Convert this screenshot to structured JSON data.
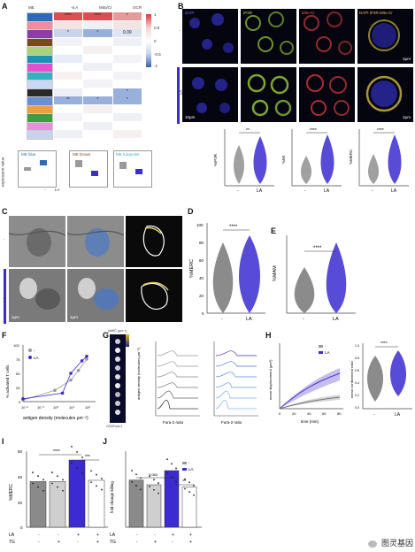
{
  "panelA": {
    "label": "A",
    "col_headers": [
      "ME",
      "-II.A",
      "Mito/Cr",
      "OCR"
    ],
    "row_colors": [
      "#2f6ab8",
      "#f08ca0",
      "#8a3fa6",
      "#7a4a1e",
      "#a9d27a",
      "#1e90b5",
      "#e44fcf",
      "#35b0c0",
      "#c9d9f5",
      "#2a2a2a",
      "#6a8fd0",
      "#f39c3e",
      "#3e9e3e",
      "#e98fd7",
      "#c7d3ea"
    ],
    "stars": [
      [
        "****",
        "****",
        "*"
      ],
      [
        "",
        "",
        ""
      ],
      [
        "*",
        "*",
        "0.09"
      ],
      [
        "",
        "",
        ""
      ],
      [
        "",
        "",
        ""
      ],
      [
        "",
        "",
        ""
      ],
      [
        "",
        "",
        ""
      ],
      [
        "",
        "",
        ""
      ],
      [
        "",
        "",
        ""
      ],
      [
        "",
        "",
        "*"
      ],
      [
        "**",
        "*",
        "*"
      ],
      [
        "",
        "",
        ""
      ],
      [
        "",
        "",
        ""
      ],
      [
        "",
        "",
        ""
      ],
      [
        "",
        "",
        ""
      ]
    ],
    "scale_ticks": [
      "1",
      "0.5",
      "0",
      "-0.5",
      "-1"
    ],
    "modules": [
      "ME blue",
      "ME brown",
      "ME turquoise"
    ],
    "module_colors": [
      "#2f6ab8",
      "#7a4a1e",
      "#35b0c0"
    ],
    "ylabel": "expression value",
    "xcats": [
      "-",
      "LA"
    ]
  },
  "panelB": {
    "label": "B",
    "channels": [
      "DAPI",
      "IP3R",
      "Mito-Cr",
      "DAPI IP3R Mito-Cr"
    ],
    "row_labels": [
      "-",
      "LA"
    ],
    "scale_top": "2μm",
    "scale_bottom": "2μm",
    "scale_left": "10μm",
    "plots": [
      {
        "ylabel": "%IP3R",
        "sig": "**",
        "xcats": [
          "-",
          "LA"
        ]
      },
      {
        "ylabel": "%MI",
        "sig": "****",
        "xcats": [
          "-",
          "LA"
        ]
      },
      {
        "ylabel": "%MERC",
        "sig": "****",
        "xcats": [
          "-",
          "LA"
        ]
      }
    ]
  },
  "panelC": {
    "label": "C",
    "row_labels": [
      "-",
      "LA"
    ],
    "scale": [
      "1μm",
      "1μm"
    ]
  },
  "panelD": {
    "label": "D",
    "ylabel": "%MERC",
    "yticks": [
      "100",
      "80",
      "60",
      "40",
      "20",
      "0"
    ],
    "sig": "****",
    "xcats": [
      "-",
      "LA"
    ]
  },
  "panelE": {
    "label": "E",
    "ylabel": "%MAM",
    "sig": "****",
    "xcats": [
      "-",
      "LA"
    ]
  },
  "panelF": {
    "label": "F",
    "ylabel": "% activated T cells",
    "xlabel": "antigen density (molecules μm⁻²)",
    "legend": [
      "-",
      "LA"
    ],
    "yticks": [
      "100",
      "75",
      "50",
      "25",
      "0"
    ],
    "xticks": [
      "10⁻²",
      "10⁻¹",
      "10⁰",
      "10¹",
      "10²"
    ],
    "chart_data": {
      "type": "line",
      "series": [
        {
          "name": "-",
          "x": [
            0.01,
            1,
            10,
            30,
            100
          ],
          "values": [
            3,
            20,
            38,
            55,
            75
          ]
        },
        {
          "name": "LA",
          "x": [
            0.01,
            3,
            10,
            50,
            100
          ],
          "values": [
            5,
            15,
            50,
            72,
            80
          ]
        }
      ]
    }
  },
  "panelG": {
    "label": "G",
    "strip_top": "pMHC (μm⁻²)",
    "strip_bottom": "CD3/Fura-2",
    "ylabel": "antigen density (molecules μm⁻²)",
    "xlabel1": "Fura-2 ratio",
    "xlabel2": "Fura-2 ratio"
  },
  "panelH": {
    "label": "H",
    "ylabel": "mean displacement (μm²)",
    "xlabel": "time (min)",
    "legend": [
      "-",
      "LA"
    ],
    "xticks": [
      "0",
      "20",
      "40",
      "60",
      "80"
    ],
    "ylabel2": "mean confinement ratio",
    "yticks2": [
      "1.0",
      "0.8",
      "0.6",
      "0.4",
      "0.2",
      "0.0"
    ],
    "sig": "****",
    "xcats": [
      "-",
      "LA"
    ]
  },
  "panelI": {
    "label": "I",
    "ylabel": "%MERC",
    "yticks": [
      "60",
      "40",
      "20",
      "0"
    ],
    "sig": [
      "****",
      "***"
    ],
    "row_labels": [
      "LA",
      "TG"
    ],
    "la_signs": [
      "-",
      "-",
      "+",
      "+"
    ],
    "tg_signs": [
      "-",
      "+",
      "-",
      "+"
    ],
    "chart_data": {
      "type": "bar",
      "categories": [
        "-/-",
        "-/TG",
        "LA/-",
        "LA/TG"
      ],
      "values": [
        36,
        36,
        53,
        37
      ],
      "ylim": [
        0,
        60
      ]
    }
  },
  "panelJ": {
    "label": "J",
    "ylabel": "fold change killing",
    "sig": [
      "0.060",
      "**"
    ],
    "legend": [
      "-",
      "LA"
    ],
    "row_labels": [
      "LA",
      "TG"
    ],
    "la_signs": [
      "-",
      "-",
      "+",
      "+"
    ],
    "tg_signs": [
      "-",
      "+",
      "-",
      "+"
    ],
    "chart_data": {
      "type": "bar",
      "categories": [
        "-/-",
        "-/TG",
        "LA/-",
        "LA/TG"
      ],
      "values": [
        1.0,
        0.9,
        1.2,
        0.85
      ],
      "ylim": [
        0,
        1.5
      ]
    }
  },
  "watermark": "图灵基因"
}
